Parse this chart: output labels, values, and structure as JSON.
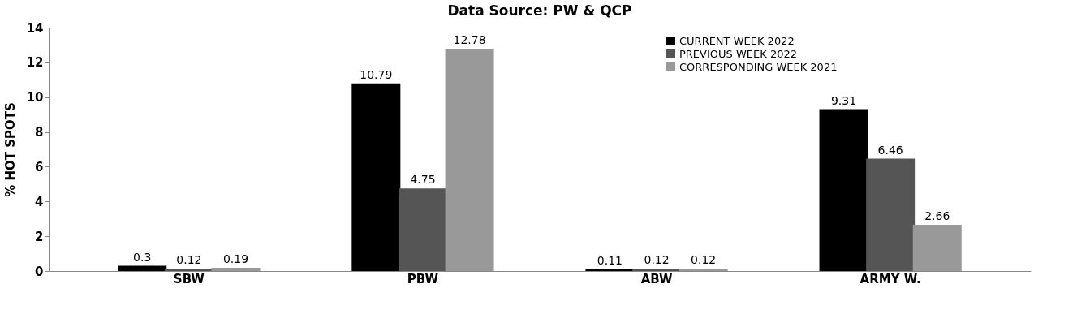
{
  "chart_data": {
    "type": "bar",
    "title": "Data Source: PW & QCP",
    "ylabel": "% HOT SPOTS",
    "categories": [
      "SBW",
      "PBW",
      "ABW",
      "ARMY W."
    ],
    "series": [
      {
        "name": "CURRENT WEEK 2022",
        "color": "#000000",
        "values": [
          0.3,
          10.79,
          0.11,
          9.31
        ]
      },
      {
        "name": "PREVIOUS WEEK 2022",
        "color": "#555555",
        "values": [
          0.12,
          4.75,
          0.12,
          6.46
        ]
      },
      {
        "name": "CORRESPONDING WEEK 2021",
        "color": "#999999",
        "values": [
          0.19,
          12.78,
          0.12,
          2.66
        ]
      }
    ],
    "ylim": [
      0,
      14
    ],
    "yticks": [
      0,
      2,
      4,
      6,
      8,
      10,
      12,
      14
    ],
    "data_labels": true,
    "legend": "top",
    "grid": false
  }
}
